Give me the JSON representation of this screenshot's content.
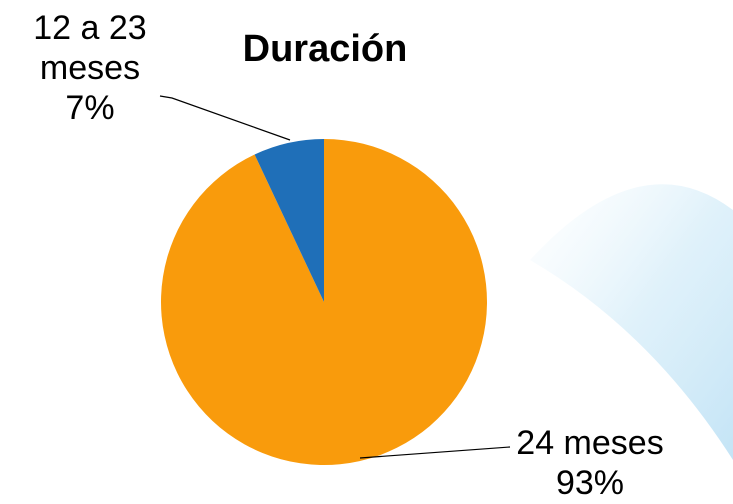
{
  "chart_data": {
    "type": "pie",
    "title": "Duración",
    "categories": [
      "24 meses",
      "12 a 23 meses"
    ],
    "values": [
      93,
      7
    ],
    "value_labels": [
      "93%",
      "7%"
    ],
    "colors": [
      "#f99b0c",
      "#1f6fb8"
    ]
  }
}
